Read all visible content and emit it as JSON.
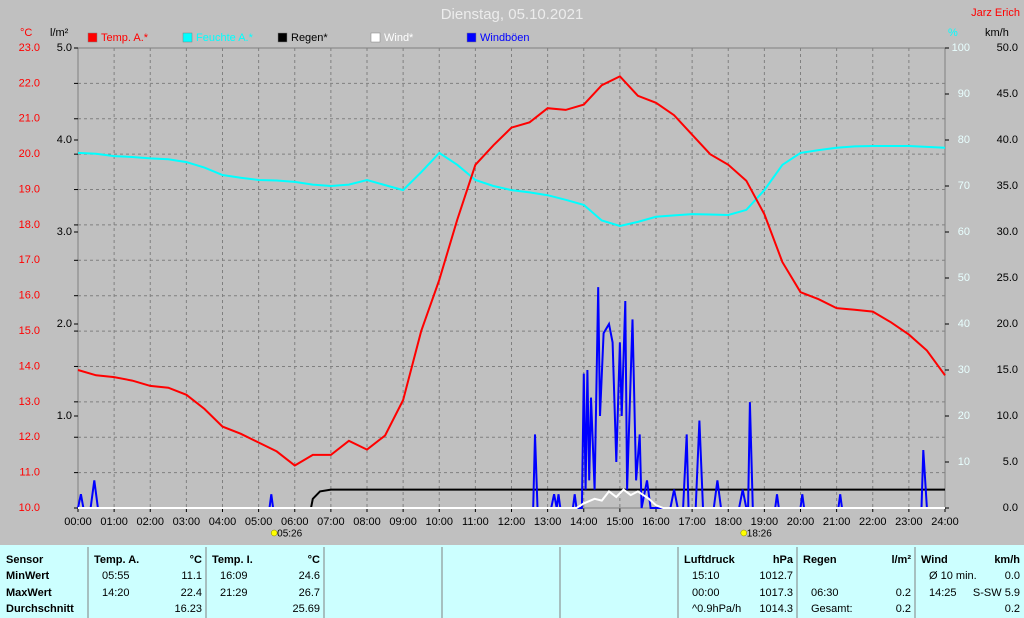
{
  "chart_data": {
    "type": "line",
    "title": "Dienstag, 05.10.2021",
    "author": "Jarz Erich",
    "y_unit": "°C",
    "y2_unit": "l/m²",
    "y3_unit": "%",
    "y4_unit": "km/h",
    "grid": true,
    "x": [
      0,
      0.5,
      1,
      1.5,
      2,
      2.5,
      3,
      3.5,
      4,
      4.5,
      5,
      5.5,
      6,
      6.5,
      7,
      7.5,
      8,
      8.5,
      9,
      9.5,
      10,
      10.5,
      11,
      11.5,
      12,
      12.5,
      13,
      13.5,
      14,
      14.5,
      15,
      15.5,
      16,
      16.5,
      17,
      17.5,
      18,
      18.5,
      19,
      19.5,
      20,
      20.5,
      21,
      21.5,
      22,
      22.5,
      23,
      23.5,
      24
    ],
    "xlim": [
      0,
      24
    ],
    "xticks": [
      {
        "value": 0,
        "label": "00:00"
      },
      {
        "value": 1,
        "label": "01:00"
      },
      {
        "value": 2,
        "label": "02:00"
      },
      {
        "value": 3,
        "label": "03:00"
      },
      {
        "value": 4,
        "label": "04:00"
      },
      {
        "value": 5,
        "label": "05:00"
      },
      {
        "value": 6,
        "label": "06:00"
      },
      {
        "value": 7,
        "label": "07:00"
      },
      {
        "value": 8,
        "label": "08:00"
      },
      {
        "value": 9,
        "label": "09:00"
      },
      {
        "value": 10,
        "label": "10:00"
      },
      {
        "value": 11,
        "label": "11:00"
      },
      {
        "value": 12,
        "label": "12:00"
      },
      {
        "value": 13,
        "label": "13:00"
      },
      {
        "value": 14,
        "label": "14:00"
      },
      {
        "value": 15,
        "label": "15:00"
      },
      {
        "value": 16,
        "label": "16:00"
      },
      {
        "value": 17,
        "label": "17:00"
      },
      {
        "value": 18,
        "label": "18:00"
      },
      {
        "value": 19,
        "label": "19:00"
      },
      {
        "value": 20,
        "label": "20:00"
      },
      {
        "value": 21,
        "label": "21:00"
      },
      {
        "value": 22,
        "label": "22:00"
      },
      {
        "value": 23,
        "label": "23:00"
      },
      {
        "value": 24,
        "label": "24:00"
      }
    ],
    "ylim": [
      10,
      23
    ],
    "yticks": [
      {
        "value": 10,
        "label": "10.0"
      },
      {
        "value": 11,
        "label": "11.0"
      },
      {
        "value": 12,
        "label": "12.0"
      },
      {
        "value": 13,
        "label": "13.0"
      },
      {
        "value": 14,
        "label": "14.0"
      },
      {
        "value": 15,
        "label": "15.0"
      },
      {
        "value": 16,
        "label": "16.0"
      },
      {
        "value": 17,
        "label": "17.0"
      },
      {
        "value": 18,
        "label": "18.0"
      },
      {
        "value": 19,
        "label": "19.0"
      },
      {
        "value": 20,
        "label": "20.0"
      },
      {
        "value": 21,
        "label": "21.0"
      },
      {
        "value": 22,
        "label": "22.0"
      },
      {
        "value": 23,
        "label": "23.0"
      }
    ],
    "y2lim": [
      0,
      5
    ],
    "y2ticks": [
      {
        "value": 1,
        "label": "1.0"
      },
      {
        "value": 2,
        "label": "2.0"
      },
      {
        "value": 3,
        "label": "3.0"
      },
      {
        "value": 4,
        "label": "4.0"
      },
      {
        "value": 5,
        "label": "5.0"
      }
    ],
    "y3lim": [
      0,
      100
    ],
    "y3ticks": [
      10,
      20,
      30,
      40,
      50,
      60,
      70,
      80,
      90,
      100
    ],
    "y4lim": [
      0,
      50
    ],
    "y4ticks": [
      {
        "value": 0,
        "label": "0.0"
      },
      {
        "value": 5,
        "label": "5.0"
      },
      {
        "value": 10,
        "label": "10.0"
      },
      {
        "value": 15,
        "label": "15.0"
      },
      {
        "value": 20,
        "label": "20.0"
      },
      {
        "value": 25,
        "label": "25.0"
      },
      {
        "value": 30,
        "label": "30.0"
      },
      {
        "value": 35,
        "label": "35.0"
      },
      {
        "value": 40,
        "label": "40.0"
      },
      {
        "value": 45,
        "label": "45.0"
      },
      {
        "value": 50,
        "label": "50.0"
      }
    ],
    "series": [
      {
        "name": "Temp. A.*",
        "color": "#ff0000",
        "axis": "y",
        "values": [
          13.9,
          13.75,
          13.7,
          13.6,
          13.45,
          13.4,
          13.2,
          12.8,
          12.3,
          12.1,
          11.85,
          11.6,
          11.2,
          11.5,
          11.5,
          11.9,
          11.65,
          12.05,
          13.05,
          15.0,
          16.45,
          18.15,
          19.7,
          20.25,
          20.75,
          20.9,
          21.3,
          21.25,
          21.4,
          21.95,
          22.2,
          21.65,
          21.45,
          21.1,
          20.55,
          20.0,
          19.7,
          19.25,
          18.3,
          16.95,
          16.1,
          15.9,
          15.65,
          15.6,
          15.55,
          15.25,
          14.9,
          14.45,
          13.75
        ]
      },
      {
        "name": "Feuchte A.*",
        "color": "#00ffff",
        "axis": "y3",
        "values": [
          77.2,
          77,
          76.5,
          76.3,
          76,
          75.8,
          75.2,
          74,
          72.4,
          71.8,
          71.3,
          71.2,
          70.9,
          70.3,
          70,
          70.3,
          71.3,
          70.2,
          69.1,
          73,
          77.2,
          74.6,
          71.3,
          70,
          69.1,
          68.6,
          68,
          67,
          65.9,
          62.5,
          61.3,
          62.2,
          63.3,
          63.6,
          63.9,
          63.8,
          63.7,
          64.8,
          69.1,
          74.6,
          77.2,
          77.8,
          78.3,
          78.6,
          78.7,
          78.7,
          78.7,
          78.5,
          78.3
        ]
      },
      {
        "name": "Regen*",
        "color": "#000000",
        "axis": "y2",
        "x": [
          0,
          6.45,
          6.5,
          6.7,
          7.0,
          24
        ],
        "values": [
          0,
          0,
          0.1,
          0.18,
          0.2,
          0.2
        ]
      },
      {
        "name": "Wind*",
        "color": "#ffffff",
        "axis": "y4",
        "x": [
          0,
          13.8,
          14,
          14.3,
          14.5,
          14.7,
          14.9,
          15.1,
          15.3,
          15.5,
          15.8,
          16.0,
          16.2,
          24
        ],
        "values": [
          0,
          0,
          0.5,
          1.0,
          0.8,
          1.8,
          1.2,
          2.0,
          1.4,
          1.8,
          1.0,
          0.3,
          0,
          0
        ]
      },
      {
        "name": "Windböen",
        "color": "#0000ff",
        "axis": "y4",
        "x": [
          0,
          0.08,
          0.15,
          0.35,
          0.45,
          0.55,
          5.3,
          5.35,
          5.4,
          12.6,
          12.65,
          12.72,
          13.1,
          13.18,
          13.25,
          13.3,
          13.35,
          13.7,
          13.75,
          13.8,
          13.95,
          14.0,
          14.05,
          14.1,
          14.15,
          14.2,
          14.3,
          14.4,
          14.45,
          14.55,
          14.7,
          14.8,
          14.9,
          15.0,
          15.05,
          15.15,
          15.2,
          15.35,
          15.45,
          15.55,
          15.6,
          15.75,
          15.85,
          16.4,
          16.5,
          16.6,
          16.75,
          16.85,
          16.9,
          17.1,
          17.2,
          17.3,
          17.6,
          17.7,
          17.8,
          18.3,
          18.4,
          18.5,
          18.55,
          18.6,
          18.68,
          19.3,
          19.35,
          19.4,
          20.0,
          20.05,
          20.1,
          21.05,
          21.1,
          21.15,
          23.35,
          23.4,
          23.5,
          24
        ],
        "values": [
          0,
          1.5,
          0,
          0,
          3,
          0,
          0,
          1.5,
          0,
          0,
          8,
          0,
          0,
          1.5,
          0,
          1.5,
          0,
          0,
          1.5,
          0,
          0,
          14.6,
          2,
          15,
          3,
          12,
          2,
          24,
          10,
          19,
          20,
          18,
          5,
          18,
          10,
          22.5,
          2,
          20.5,
          3,
          8,
          0,
          3,
          0,
          0,
          2,
          0,
          0,
          8,
          0,
          0,
          9.5,
          0,
          0,
          3,
          0,
          0,
          2,
          0,
          0,
          11.5,
          0,
          0,
          1.5,
          0,
          0,
          1.5,
          0,
          0,
          1.5,
          0,
          0,
          6.3,
          0,
          0
        ]
      }
    ],
    "annotations": [
      {
        "x": 5.43,
        "label": "05:26"
      },
      {
        "x": 18.43,
        "label": "18:26"
      }
    ]
  },
  "table": {
    "blocks": [
      {
        "header": [
          "Sensor"
        ],
        "rows": [
          [
            "MinWert"
          ],
          [
            "MaxWert"
          ],
          [
            "Durchschnitt"
          ]
        ]
      },
      {
        "header": [
          "Temp. A.",
          "°C"
        ],
        "rows": [
          [
            "05:55",
            "11.1"
          ],
          [
            "14:20",
            "22.4"
          ],
          [
            null,
            "16.23"
          ]
        ]
      },
      {
        "header": [
          "Temp. I.",
          "°C"
        ],
        "rows": [
          [
            "16:09",
            "24.6"
          ],
          [
            "21:29",
            "26.7"
          ],
          [
            null,
            "25.69"
          ]
        ]
      },
      {
        "header": [],
        "rows": [
          [],
          [],
          []
        ]
      },
      {
        "header": [],
        "rows": [
          [],
          [],
          []
        ]
      },
      {
        "header": [],
        "rows": [
          [],
          [],
          []
        ]
      },
      {
        "header": [
          "Luftdruck",
          "hPa"
        ],
        "rows": [
          [
            "15:10",
            "1012.7"
          ],
          [
            "00:00",
            "1017.3"
          ],
          [
            "^0.9hPa/h",
            "1014.3"
          ]
        ]
      },
      {
        "header": [
          "Regen",
          "l/m²"
        ],
        "rows": [
          [],
          [
            "06:30",
            "0.2"
          ],
          [
            "Gesamt:",
            "0.2"
          ]
        ]
      },
      {
        "header": [
          "Wind",
          "km/h"
        ],
        "rows": [
          [
            "Ø 10 min.",
            "0.0"
          ],
          [
            "14:25",
            "S-SW 5.9"
          ],
          [
            null,
            "0.2"
          ]
        ]
      }
    ]
  }
}
